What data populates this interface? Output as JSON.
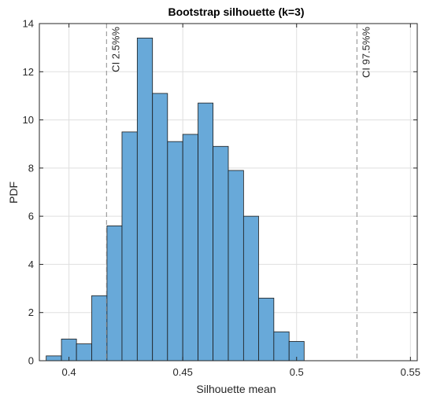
{
  "chart_data": {
    "type": "bar",
    "title": "Bootstrap silhouette (k=3)",
    "xlabel": "Silhouette mean",
    "ylabel": "PDF",
    "xlim": [
      0.387,
      0.553
    ],
    "ylim": [
      0,
      14
    ],
    "xticks": [
      0.4,
      0.45,
      0.5,
      0.55
    ],
    "yticks": [
      0,
      2,
      4,
      6,
      8,
      10,
      12,
      14
    ],
    "grid": true,
    "bar_color": "#68a9d9",
    "bins": [
      {
        "x0": 0.39,
        "x1": 0.3967,
        "value": 0.2
      },
      {
        "x0": 0.3967,
        "x1": 0.4033,
        "value": 0.9
      },
      {
        "x0": 0.4033,
        "x1": 0.41,
        "value": 0.7
      },
      {
        "x0": 0.41,
        "x1": 0.4167,
        "value": 2.7
      },
      {
        "x0": 0.4167,
        "x1": 0.4233,
        "value": 5.6
      },
      {
        "x0": 0.4233,
        "x1": 0.43,
        "value": 9.5
      },
      {
        "x0": 0.43,
        "x1": 0.4367,
        "value": 13.4
      },
      {
        "x0": 0.4367,
        "x1": 0.4433,
        "value": 11.1
      },
      {
        "x0": 0.4433,
        "x1": 0.45,
        "value": 9.1
      },
      {
        "x0": 0.45,
        "x1": 0.4567,
        "value": 9.4
      },
      {
        "x0": 0.4567,
        "x1": 0.4633,
        "value": 10.7
      },
      {
        "x0": 0.4633,
        "x1": 0.47,
        "value": 8.9
      },
      {
        "x0": 0.47,
        "x1": 0.4767,
        "value": 7.9
      },
      {
        "x0": 0.4767,
        "x1": 0.4833,
        "value": 6.0
      },
      {
        "x0": 0.4833,
        "x1": 0.49,
        "value": 2.6
      },
      {
        "x0": 0.49,
        "x1": 0.4967,
        "value": 1.2
      },
      {
        "x0": 0.4967,
        "x1": 0.5033,
        "value": 0.8
      }
    ],
    "annotations": [
      {
        "x": 0.4165,
        "label": "CI 2.5%%"
      },
      {
        "x": 0.5265,
        "label": "CI 97.5%%"
      }
    ]
  }
}
